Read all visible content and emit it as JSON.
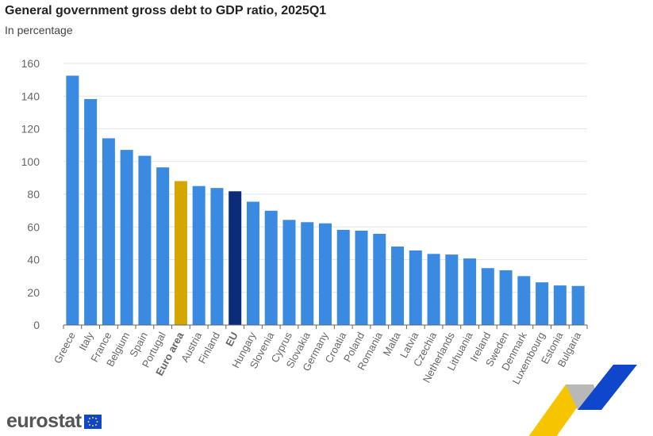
{
  "title": "General government gross debt to GDP ratio, 2025Q1",
  "subtitle": "In percentage",
  "logo": "eurostat",
  "colors": {
    "country": "#3a8ae2",
    "euro_area": "#d4a600",
    "eu": "#0c2c7a",
    "grid": "#e3e6ee",
    "axis": "#666",
    "text": "#666"
  },
  "chart_data": {
    "type": "bar",
    "title": "General government gross debt to GDP ratio, 2025Q1",
    "ylabel": "In percentage",
    "ylim": [
      0,
      160
    ],
    "yticks": [
      0,
      20,
      40,
      60,
      80,
      100,
      120,
      140,
      160
    ],
    "grid": true,
    "categories": [
      "Greece",
      "Italy",
      "France",
      "Belgium",
      "Spain",
      "Portugal",
      "Euro area",
      "Austria",
      "Finland",
      "EU",
      "Hungary",
      "Slovenia",
      "Cyprus",
      "Slovakia",
      "Germany",
      "Croatia",
      "Poland",
      "Romania",
      "Malta",
      "Latvia",
      "Czechia",
      "Netherlands",
      "Lithuania",
      "Ireland",
      "Sweden",
      "Denmark",
      "Luxembourg",
      "Estonia",
      "Bulgaria"
    ],
    "values": [
      152.5,
      138.2,
      114.2,
      107.1,
      103.5,
      96.4,
      88.0,
      85.0,
      83.8,
      81.8,
      75.4,
      69.9,
      64.3,
      62.9,
      62.2,
      58.2,
      57.7,
      55.8,
      48.0,
      45.6,
      43.5,
      43.1,
      40.7,
      34.8,
      33.5,
      29.9,
      26.1,
      24.2,
      23.9
    ],
    "highlight": {
      "Euro area": "euro_area",
      "EU": "eu"
    }
  }
}
